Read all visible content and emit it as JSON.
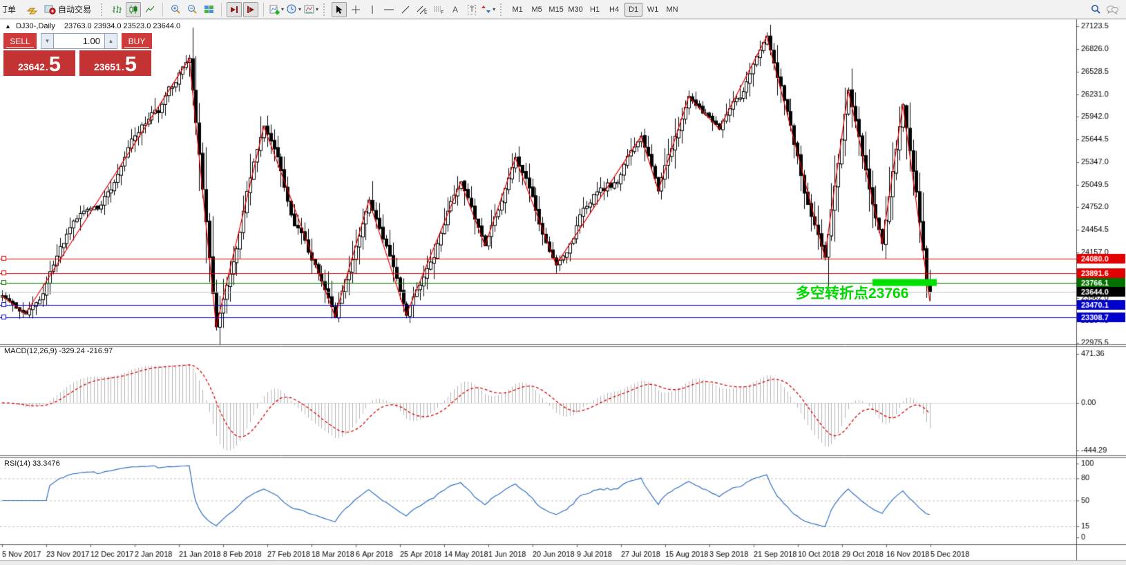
{
  "toolbar": {
    "order_label": "订单",
    "autotrading_label": "自动交易",
    "timeframes": [
      "M1",
      "M5",
      "M15",
      "M30",
      "H1",
      "H4",
      "D1",
      "W1",
      "MN"
    ],
    "active_timeframe": "D1"
  },
  "chart_header": {
    "symbol_period": "DJ30-,Daily",
    "ohlc_text": "23763.0 23934.0 23523.0 23644.0"
  },
  "trade_panel": {
    "sell_label": "SELL",
    "buy_label": "BUY",
    "volume": "1.00",
    "sell_price": "23642",
    "sell_price_big": "5",
    "buy_price": "23651",
    "buy_price_big": "5"
  },
  "annotation": {
    "text": "多空转折点23766",
    "color": "#00d800"
  },
  "indicators": {
    "macd_label": "MACD(12,26,9) -329.24 -216.97",
    "rsi_label": "RSI(14) 33.3476"
  },
  "chart_data": {
    "type": "candlestick",
    "symbol": "DJ30-",
    "period": "Daily",
    "overlay": "zigzag-red",
    "last_ohlc": {
      "open": 23763.0,
      "high": 23934.0,
      "low": 23523.0,
      "close": 23644.0
    },
    "bid": {
      "price": 23644.0,
      "label": "23644.0",
      "line_color": "#c0c0c0",
      "tag_color": "#000000"
    },
    "y_axis": {
      "max": 27123.5,
      "min": 22975.5,
      "ticks": [
        "27123.5",
        "26826.0",
        "26528.5",
        "26231.0",
        "25942.0",
        "25644.5",
        "25347.0",
        "25049.5",
        "24752.0",
        "24454.5",
        "24157.0",
        "23859.5",
        "23562.0",
        "23264.5",
        "22975.5"
      ]
    },
    "x_axis": {
      "labels": [
        "5 Nov 2017",
        "23 Nov 2017",
        "12 Dec 2017",
        "2 Jan 2018",
        "21 Jan 2018",
        "8 Feb 2018",
        "27 Feb 2018",
        "18 Mar 2018",
        "6 Apr 2018",
        "25 Apr 2018",
        "14 May 2018",
        "1 Jun 2018",
        "20 Jun 2018",
        "9 Jul 2018",
        "27 Jul 2018",
        "15 Aug 2018",
        "3 Sep 2018",
        "21 Sep 2018",
        "10 Oct 2018",
        "29 Oct 2018",
        "16 Nov 2018",
        "5 Dec 2018"
      ]
    },
    "zigzag_pivots": [
      {
        "bar": 0,
        "price": 23590
      },
      {
        "bar": 7,
        "price": 23360
      },
      {
        "bar": 55,
        "price": 26700
      },
      {
        "bar": 63,
        "price": 23190
      },
      {
        "bar": 77,
        "price": 25810
      },
      {
        "bar": 98,
        "price": 23320
      },
      {
        "bar": 108,
        "price": 24840
      },
      {
        "bar": 119,
        "price": 23340
      },
      {
        "bar": 135,
        "price": 25080
      },
      {
        "bar": 142,
        "price": 24250
      },
      {
        "bar": 151,
        "price": 25400
      },
      {
        "bar": 163,
        "price": 24000
      },
      {
        "bar": 188,
        "price": 25680
      },
      {
        "bar": 193,
        "price": 24970
      },
      {
        "bar": 202,
        "price": 26200
      },
      {
        "bar": 211,
        "price": 25780
      },
      {
        "bar": 225,
        "price": 26990
      },
      {
        "bar": 242,
        "price": 24100
      },
      {
        "bar": 249,
        "price": 26280
      },
      {
        "bar": 259,
        "price": 24280
      },
      {
        "bar": 265,
        "price": 26090
      },
      {
        "bar": 273,
        "price": 23520
      }
    ],
    "hlines": [
      {
        "price": 24080.0,
        "label": "24080.0",
        "color": "#e00000"
      },
      {
        "price": 23891.6,
        "label": "23891.6",
        "color": "#e00000"
      },
      {
        "price": 23766.1,
        "label": "23766.1",
        "color": "#007000"
      },
      {
        "price": 23470.1,
        "label": "23470.1",
        "color": "#0000cc"
      },
      {
        "price": 23308.7,
        "label": "23308.7",
        "color": "#0000cc"
      }
    ],
    "highlight": {
      "price": 23766.1,
      "from_bar": 256,
      "to_bar": 275,
      "color": "#00e000",
      "thickness": 10
    },
    "macd": {
      "params": [
        12,
        26,
        9
      ],
      "value": -329.24,
      "signal_value": -216.97,
      "axis": [
        "471.36",
        "0.00",
        "-444.29"
      ],
      "axis_values": [
        471.36,
        0,
        -444.29
      ],
      "hist_color": "#b4b4b4",
      "signal_color": "#dd0000"
    },
    "rsi": {
      "period": 14,
      "value": 33.3476,
      "axis": [
        "100",
        "80",
        "50",
        "15",
        "0"
      ],
      "levels": [
        80,
        50,
        15
      ],
      "line_color": "#2f6fc4"
    }
  }
}
